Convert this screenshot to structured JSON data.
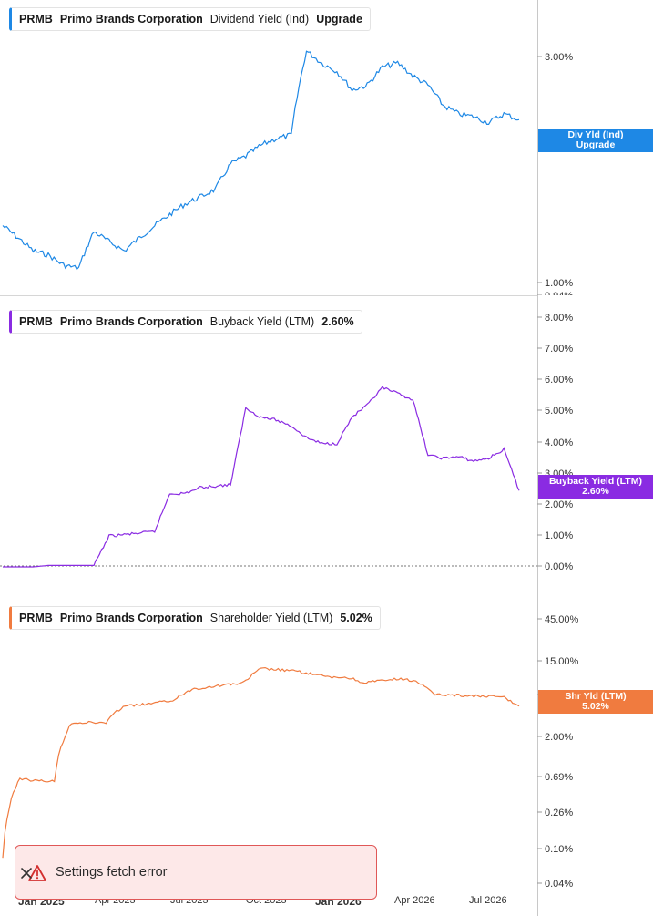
{
  "panels": [
    {
      "ticker": "PRMB",
      "company": "Primo Brands Corporation",
      "metric": "Dividend Yield (Ind)",
      "value": "Upgrade",
      "color": "#1e88e5",
      "flag_lines": [
        "Div Yld (Ind)",
        "Upgrade"
      ],
      "ticks": [
        "3.00%",
        "1.00%",
        "0.94%"
      ]
    },
    {
      "ticker": "PRMB",
      "company": "Primo Brands Corporation",
      "metric": "Buyback Yield (LTM)",
      "value": "2.60%",
      "color": "#8a2be2",
      "flag_lines": [
        "Buyback Yield (LTM)",
        "2.60%"
      ],
      "ticks": [
        "8.00%",
        "7.00%",
        "6.00%",
        "5.00%",
        "4.00%",
        "3.00%",
        "2.00%",
        "1.00%",
        "0.00%"
      ]
    },
    {
      "ticker": "PRMB",
      "company": "Primo Brands Corporation",
      "metric": "Shareholder Yield (LTM)",
      "value": "5.02%",
      "color": "#f07b3f",
      "flag_lines": [
        "Shr Yld (LTM)",
        "5.02%"
      ],
      "ticks": [
        "45.00%",
        "15.00%",
        "5.00%",
        "2.00%",
        "0.69%",
        "0.26%",
        "0.10%",
        "0.04%"
      ]
    }
  ],
  "x_labels": [
    "Jan 2025",
    "Apr 2025",
    "Jul 2025",
    "Oct 2025",
    "Jan 2026",
    "Apr 2026",
    "Jul 2026"
  ],
  "toast": {
    "message": "Settings fetch error"
  },
  "chart_data": [
    {
      "type": "line",
      "title": "PRMB Primo Brands Corporation Dividend Yield (Ind)",
      "scale": "log",
      "ylim": [
        0.94,
        4.5
      ],
      "series": [
        {
          "name": "Dividend Yield (Ind)",
          "values": [
            1.35,
            1.25,
            1.15,
            1.12,
            1.05,
            1.03,
            1.3,
            1.22,
            1.15,
            1.25,
            1.35,
            1.45,
            1.55,
            1.62,
            1.7,
            2.0,
            2.1,
            2.25,
            2.35,
            2.4,
            4.1,
            3.8,
            3.6,
            3.2,
            3.3,
            3.7,
            3.8,
            3.5,
            3.3,
            2.9,
            2.75,
            2.7,
            2.6,
            2.75,
            2.65
          ]
        }
      ]
    },
    {
      "type": "line",
      "title": "PRMB Primo Brands Corporation Buyback Yield (LTM)",
      "ylim": [
        0,
        8.5
      ],
      "series": [
        {
          "name": "Buyback Yield (LTM)",
          "values": [
            0.0,
            0.0,
            0.0,
            0.05,
            0.05,
            0.05,
            0.05,
            1.05,
            1.1,
            1.15,
            1.2,
            2.5,
            2.5,
            2.7,
            2.75,
            2.8,
            5.4,
            5.1,
            5.0,
            4.8,
            4.4,
            4.2,
            4.2,
            5.1,
            5.5,
            6.1,
            5.9,
            5.7,
            3.8,
            3.7,
            3.75,
            3.6,
            3.7,
            4.0,
            2.6
          ]
        }
      ]
    },
    {
      "type": "line",
      "title": "PRMB Primo Brands Corporation Shareholder Yield (LTM)",
      "scale": "log",
      "ylim": [
        0.04,
        60
      ],
      "series": [
        {
          "name": "Shareholder Yield (LTM)",
          "values": [
            0.08,
            0.7,
            0.65,
            0.65,
            3.2,
            3.2,
            3.2,
            5.0,
            5.2,
            5.5,
            6.0,
            8.0,
            8.5,
            9.0,
            9.5,
            14.0,
            13.5,
            13.0,
            12.0,
            11.0,
            11.0,
            9.5,
            10.0,
            10.5,
            10.0,
            7.0,
            6.8,
            6.7,
            6.5,
            6.5,
            5.02
          ]
        }
      ]
    }
  ]
}
